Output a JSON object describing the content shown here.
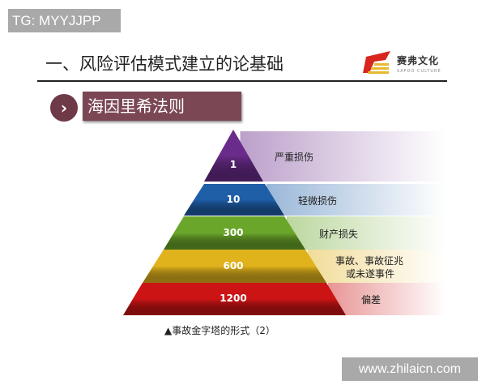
{
  "watermark_top": "TG: MYYJJPP",
  "title": "一、风险评估模式建立的论基础",
  "logo": {
    "name": "赛弗文化",
    "sub": "SAFOO CULTURE"
  },
  "section": {
    "icon": "chevron-right-icon",
    "label": "海因里希法则"
  },
  "pyramid": [
    {
      "value": "1",
      "label": "严重损伤",
      "color": "#6a2c8a"
    },
    {
      "value": "10",
      "label": "轻微损伤",
      "color": "#1f5fa8"
    },
    {
      "value": "300",
      "label": "财产损失",
      "color": "#6aa62a"
    },
    {
      "value": "600",
      "label": "事故、事故征兆",
      "label2": "或未遂事件",
      "color": "#e0b21c"
    },
    {
      "value": "1200",
      "label": "偏差",
      "color": "#cc1414"
    }
  ],
  "caption": "▲事故金字塔的形式（2）",
  "watermark_bottom": "www.zhilaicn.com"
}
